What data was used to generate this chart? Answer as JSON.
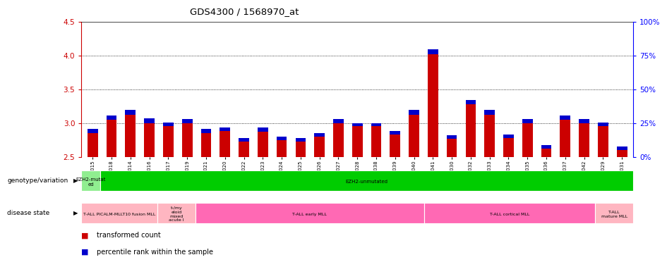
{
  "title": "GDS4300 / 1568970_at",
  "samples": [
    "GSM759015",
    "GSM759018",
    "GSM759014",
    "GSM759016",
    "GSM759017",
    "GSM759019",
    "GSM759021",
    "GSM759020",
    "GSM759022",
    "GSM759023",
    "GSM759024",
    "GSM759025",
    "GSM759026",
    "GSM759027",
    "GSM759028",
    "GSM759038",
    "GSM759039",
    "GSM759040",
    "GSM759041",
    "GSM759030",
    "GSM759032",
    "GSM759033",
    "GSM759034",
    "GSM759035",
    "GSM759036",
    "GSM759037",
    "GSM759042",
    "GSM759029",
    "GSM759031"
  ],
  "red_values": [
    2.85,
    3.05,
    3.12,
    3.0,
    2.95,
    3.0,
    2.85,
    2.88,
    2.73,
    2.87,
    2.75,
    2.73,
    2.8,
    3.0,
    2.95,
    2.95,
    2.83,
    3.12,
    4.02,
    2.77,
    3.28,
    3.12,
    2.78,
    3.0,
    2.62,
    3.05,
    3.0,
    2.95,
    2.6
  ],
  "blue_values": [
    0.06,
    0.06,
    0.07,
    0.07,
    0.06,
    0.06,
    0.06,
    0.05,
    0.05,
    0.06,
    0.05,
    0.05,
    0.05,
    0.06,
    0.05,
    0.05,
    0.05,
    0.07,
    0.07,
    0.05,
    0.06,
    0.07,
    0.05,
    0.06,
    0.05,
    0.06,
    0.06,
    0.06,
    0.05
  ],
  "ymin": 2.5,
  "ymax": 4.5,
  "yticks_left": [
    2.5,
    3.0,
    3.5,
    4.0,
    4.5
  ],
  "yticks_right": [
    0,
    25,
    50,
    75,
    100
  ],
  "right_labels": [
    "0%",
    "25%",
    "50%",
    "75%",
    "100%"
  ],
  "genotype_groups": [
    {
      "label": "EZH2-mutat\ned",
      "start": 0,
      "end": 1,
      "color": "#90EE90"
    },
    {
      "label": "EZH2-unmutated",
      "start": 1,
      "end": 29,
      "color": "#00CC00"
    }
  ],
  "disease_groups": [
    {
      "label": "T-ALL PICALM-MLLT10 fusion MLL",
      "start": 0,
      "end": 4,
      "color": "#FFB6C1"
    },
    {
      "label": "t-/my\neloid\nmixed\nacute l",
      "start": 4,
      "end": 6,
      "color": "#FFB6C1"
    },
    {
      "label": "T-ALL early MLL",
      "start": 6,
      "end": 18,
      "color": "#FF69B4"
    },
    {
      "label": "T-ALL cortical MLL",
      "start": 18,
      "end": 27,
      "color": "#FF69B4"
    },
    {
      "label": "T-ALL\nmature MLL",
      "start": 27,
      "end": 29,
      "color": "#FFB6C1"
    }
  ],
  "bar_width": 0.55,
  "red_color": "#CC0000",
  "blue_color": "#0000CC",
  "bg_color": "#FFFFFF",
  "grid_color": "#333333",
  "left_label_color": "#CC0000",
  "right_label_color": "#0000FF"
}
